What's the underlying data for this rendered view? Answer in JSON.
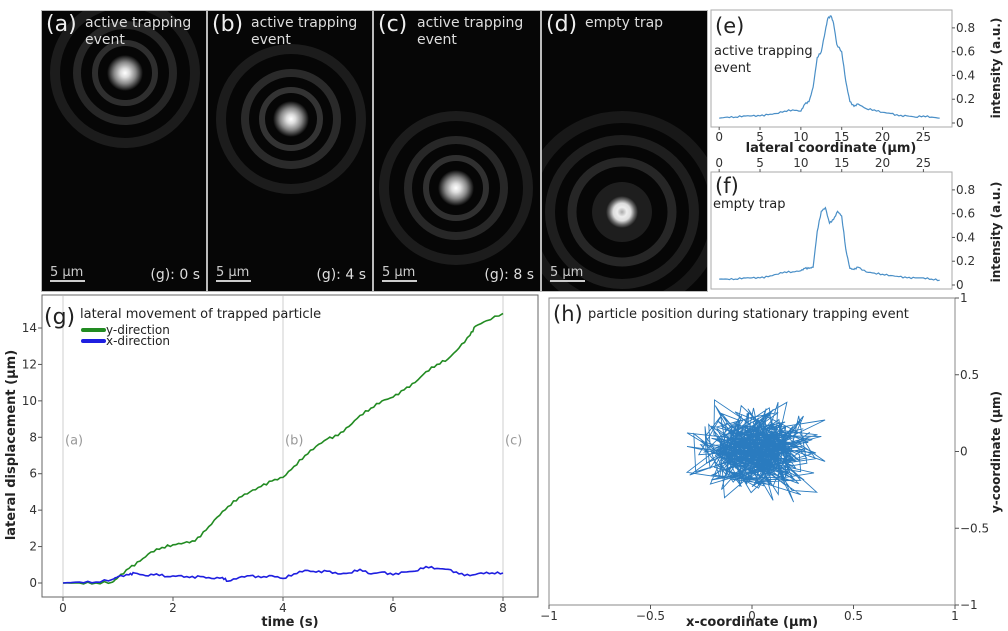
{
  "microscope_panels": [
    {
      "label": "(a)",
      "description_line1": "active trapping",
      "description_line2": "event",
      "scale_bar": "5 μm",
      "time": "(g): 0 s",
      "spot": "upper"
    },
    {
      "label": "(b)",
      "description_line1": "active trapping",
      "description_line2": "event",
      "scale_bar": "5 μm",
      "time": "(g): 4 s",
      "spot": "mid-upper"
    },
    {
      "label": "(c)",
      "description_line1": "active trapping",
      "description_line2": "event",
      "scale_bar": "5 μm",
      "time": "(g): 8 s",
      "spot": "mid-lower"
    },
    {
      "label": "(d)",
      "description_line1": "empty trap",
      "description_line2": "",
      "scale_bar": "5 μm",
      "time": "",
      "spot": "lower-ring"
    }
  ],
  "chart_data": [
    {
      "id": "e",
      "type": "line",
      "panel_label": "(e)",
      "annotation": [
        "active trapping",
        "event"
      ],
      "xlabel": "lateral coordinate (μm)",
      "ylabel": "intensity (a.u.)",
      "xlim": [
        -1,
        28.5
      ],
      "ylim": [
        0,
        0.9
      ],
      "xticks": [
        "0",
        "5",
        "10",
        "15",
        "20",
        "25"
      ],
      "xtick_values": [
        0,
        5,
        10,
        15,
        20,
        25
      ],
      "yticks": [
        "0",
        "0.2",
        "0.4",
        "0.6",
        "0.8"
      ],
      "ytick_values": [
        0,
        0.2,
        0.4,
        0.6,
        0.8
      ],
      "color": "#4a8fc7",
      "x": [
        0,
        1,
        2,
        3,
        4,
        5,
        6,
        7,
        8,
        9,
        10,
        10.5,
        11,
        11.5,
        12,
        12.5,
        13,
        13.3,
        13.7,
        14,
        14.4,
        15,
        15.5,
        16,
        16.5,
        17,
        18,
        19,
        20,
        21,
        22,
        23,
        24,
        25,
        26,
        27
      ],
      "y": [
        0.04,
        0.05,
        0.05,
        0.06,
        0.06,
        0.06,
        0.07,
        0.08,
        0.1,
        0.11,
        0.1,
        0.16,
        0.18,
        0.3,
        0.55,
        0.6,
        0.78,
        0.88,
        0.9,
        0.84,
        0.66,
        0.6,
        0.35,
        0.18,
        0.14,
        0.16,
        0.12,
        0.11,
        0.09,
        0.08,
        0.06,
        0.06,
        0.05,
        0.06,
        0.05,
        0.04
      ]
    },
    {
      "id": "f",
      "type": "line",
      "panel_label": "(f)",
      "annotation": [
        "empty trap"
      ],
      "xlabel": "",
      "ylabel": "intensity (a.u.)",
      "xlim": [
        -1,
        28.5
      ],
      "ylim": [
        0,
        0.9
      ],
      "xticks": [
        "0",
        "5",
        "10",
        "15",
        "20",
        "25"
      ],
      "xtick_values": [
        0,
        5,
        10,
        15,
        20,
        25
      ],
      "yticks": [
        "0",
        "0.2",
        "0.4",
        "0.6",
        "0.8"
      ],
      "ytick_values": [
        0,
        0.2,
        0.4,
        0.6,
        0.8
      ],
      "color": "#4a8fc7",
      "x": [
        0,
        1,
        2,
        3,
        4,
        5,
        6,
        7,
        8,
        9,
        10,
        10.5,
        11,
        11.5,
        12,
        12.5,
        13,
        13.5,
        14,
        14.5,
        15,
        15.5,
        16,
        16.5,
        17,
        18,
        19,
        20,
        21,
        22,
        23,
        24,
        25,
        26,
        27
      ],
      "y": [
        0.05,
        0.05,
        0.05,
        0.06,
        0.06,
        0.06,
        0.07,
        0.09,
        0.11,
        0.11,
        0.12,
        0.14,
        0.14,
        0.15,
        0.45,
        0.62,
        0.65,
        0.52,
        0.55,
        0.62,
        0.58,
        0.3,
        0.14,
        0.13,
        0.15,
        0.11,
        0.1,
        0.09,
        0.08,
        0.07,
        0.06,
        0.06,
        0.06,
        0.05,
        0.04
      ]
    },
    {
      "id": "g",
      "type": "line",
      "panel_label": "(g)",
      "title": "lateral movement of trapped particle",
      "xlabel": "time (s)",
      "ylabel": "lateral displacement (μm)",
      "xlim": [
        -0.45,
        8.55
      ],
      "ylim": [
        -0.7,
        15.6
      ],
      "xticks": [
        "0",
        "2",
        "4",
        "6",
        "8"
      ],
      "xtick_values": [
        0,
        2,
        4,
        6,
        8
      ],
      "yticks": [
        "0",
        "2",
        "4",
        "6",
        "8",
        "10",
        "12",
        "14"
      ],
      "ytick_values": [
        0,
        2,
        4,
        6,
        8,
        10,
        12,
        14
      ],
      "vlines": [
        {
          "x": 0,
          "label": "(a)"
        },
        {
          "x": 4,
          "label": "(b)"
        },
        {
          "x": 8,
          "label": "(c)"
        }
      ],
      "vline_label_y": 7.6,
      "legend": "top-left",
      "series": [
        {
          "name": "y-direction",
          "color": "#228b22",
          "x": [
            0,
            0.3,
            0.6,
            0.9,
            1.0,
            1.2,
            1.4,
            1.6,
            1.8,
            2.0,
            2.2,
            2.4,
            2.6,
            2.8,
            3.0,
            3.2,
            3.4,
            3.6,
            3.8,
            4.0,
            4.2,
            4.4,
            4.6,
            4.8,
            5.0,
            5.2,
            5.4,
            5.6,
            5.8,
            6.0,
            6.2,
            6.4,
            6.6,
            6.8,
            7.0,
            7.2,
            7.4,
            7.5,
            7.7,
            8.0
          ],
          "y": [
            0.0,
            0.0,
            0.0,
            0.05,
            0.3,
            0.8,
            1.2,
            1.7,
            1.95,
            2.1,
            2.2,
            2.3,
            2.9,
            3.6,
            4.2,
            4.7,
            5.0,
            5.3,
            5.6,
            5.8,
            6.4,
            7.0,
            7.5,
            7.9,
            8.1,
            8.6,
            9.2,
            9.6,
            10.0,
            10.2,
            10.6,
            11.0,
            11.6,
            12.0,
            12.3,
            12.9,
            13.6,
            14.1,
            14.4,
            14.8
          ]
        },
        {
          "name": "x-direction",
          "color": "#1f1fe0",
          "x": [
            0,
            0.3,
            0.6,
            0.9,
            1.0,
            1.2,
            1.3,
            1.5,
            1.7,
            1.9,
            2.1,
            2.3,
            2.5,
            2.7,
            2.9,
            3.0,
            3.2,
            3.4,
            3.6,
            3.8,
            4.0,
            4.2,
            4.4,
            4.6,
            4.8,
            5.0,
            5.2,
            5.4,
            5.6,
            5.8,
            6.0,
            6.2,
            6.4,
            6.6,
            6.8,
            7.0,
            7.2,
            7.4,
            7.6,
            7.8,
            8.0
          ],
          "y": [
            0.0,
            0.05,
            0.05,
            0.2,
            0.35,
            0.45,
            0.55,
            0.4,
            0.5,
            0.35,
            0.4,
            0.3,
            0.35,
            0.25,
            0.3,
            0.1,
            0.3,
            0.4,
            0.3,
            0.4,
            0.25,
            0.5,
            0.7,
            0.6,
            0.65,
            0.5,
            0.55,
            0.75,
            0.5,
            0.6,
            0.45,
            0.6,
            0.65,
            0.9,
            0.8,
            0.75,
            0.5,
            0.4,
            0.55,
            0.55,
            0.55
          ]
        }
      ]
    },
    {
      "id": "h",
      "type": "line",
      "panel_label": "(h)",
      "title": "particle position during stationary trapping event",
      "xlabel": "x-coordinate (μm)",
      "ylabel": "y-coordinate (μm)",
      "xlim": [
        -1,
        1
      ],
      "ylim": [
        -1,
        1
      ],
      "xticks": [
        "−1",
        "−0.5",
        "0",
        "0.5",
        "1"
      ],
      "xtick_values": [
        -1,
        -0.5,
        0,
        0.5,
        1
      ],
      "yticks": [
        "−1",
        "−0.5",
        "0",
        "0.5",
        "1"
      ],
      "ytick_values": [
        -1,
        -0.5,
        0,
        0.5,
        1
      ],
      "color": "#2a7bbf",
      "description": "random-walk trajectory cluster centred near (0.02, 0.0), spanning x ≈ −0.3…0.35, y ≈ −0.48…0.38",
      "center": [
        0.02,
        0.0
      ],
      "spread": [
        0.14,
        0.13
      ],
      "n_points": 420
    }
  ]
}
